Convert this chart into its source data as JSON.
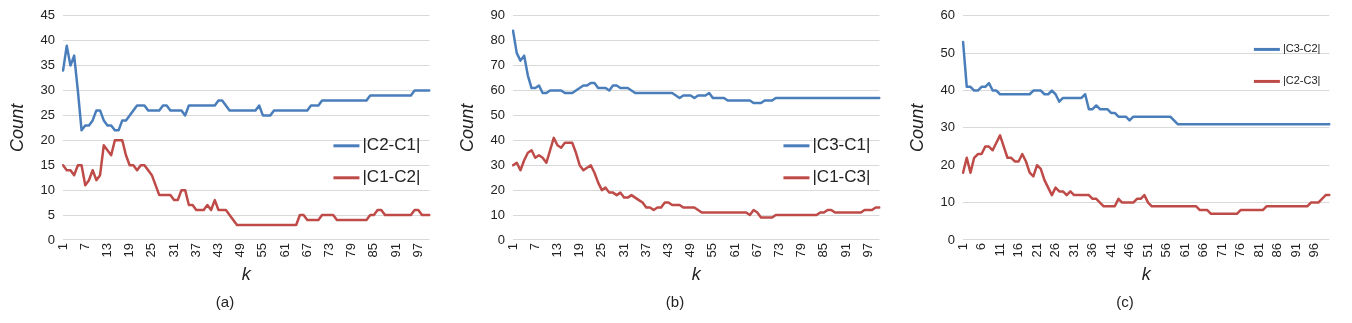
{
  "chart_data": [
    {
      "type": "line",
      "xlabel": "k",
      "ylabel": "Count",
      "ylim": [
        0,
        45
      ],
      "yticks": [
        0,
        5,
        10,
        15,
        20,
        25,
        30,
        35,
        40,
        45
      ],
      "grid": "y",
      "legend": "right",
      "marker": "none",
      "line_style": "solid",
      "annotations": [
        "(a)"
      ],
      "categories": [
        "1",
        null,
        null,
        null,
        null,
        null,
        "7",
        null,
        null,
        null,
        null,
        null,
        "13",
        null,
        null,
        null,
        null,
        null,
        "19",
        null,
        null,
        null,
        null,
        null,
        "25",
        null,
        null,
        null,
        null,
        null,
        "31",
        null,
        null,
        null,
        null,
        null,
        "37",
        null,
        null,
        null,
        null,
        null,
        "43",
        null,
        null,
        null,
        null,
        null,
        "49",
        null,
        null,
        null,
        null,
        null,
        "55",
        null,
        null,
        null,
        null,
        null,
        "61",
        null,
        null,
        null,
        null,
        null,
        "67",
        null,
        null,
        null,
        null,
        null,
        "73",
        null,
        null,
        null,
        null,
        null,
        "79",
        null,
        null,
        null,
        null,
        null,
        "85",
        null,
        null,
        null,
        null,
        null,
        "91",
        null,
        null,
        null,
        null,
        null,
        "97",
        null,
        null,
        null
      ],
      "series": [
        {
          "name": "|C2-C1|",
          "color": "#4a7ebb",
          "values": [
            34,
            39,
            35,
            37,
            30,
            22,
            23,
            23,
            24,
            26,
            26,
            24,
            23,
            23,
            22,
            22,
            24,
            24,
            25,
            26,
            27,
            27,
            27,
            26,
            26,
            26,
            26,
            27,
            27,
            26,
            26,
            26,
            26,
            25,
            27,
            27,
            27,
            27,
            27,
            27,
            27,
            27,
            28,
            28,
            27,
            26,
            26,
            26,
            26,
            26,
            26,
            26,
            26,
            27,
            25,
            25,
            25,
            26,
            26,
            26,
            26,
            26,
            26,
            26,
            26,
            26,
            26,
            27,
            27,
            27,
            28,
            28,
            28,
            28,
            28,
            28,
            28,
            28,
            28,
            28,
            28,
            28,
            28,
            29,
            29,
            29,
            29,
            29,
            29,
            29,
            29,
            29,
            29,
            29,
            29,
            30,
            30,
            30,
            30,
            30
          ]
        },
        {
          "name": "|C1-C2|",
          "color": "#be4b48",
          "values": [
            15,
            14,
            14,
            13,
            15,
            15,
            11,
            12,
            14,
            12,
            13,
            19,
            18,
            17,
            20,
            20,
            20,
            17,
            15,
            15,
            14,
            15,
            15,
            14,
            13,
            11,
            9,
            9,
            9,
            9,
            8,
            8,
            10,
            10,
            7,
            7,
            6,
            6,
            6,
            7,
            6,
            8,
            6,
            6,
            6,
            5,
            4,
            3,
            3,
            3,
            3,
            3,
            3,
            3,
            3,
            3,
            3,
            3,
            3,
            3,
            3,
            3,
            3,
            3,
            5,
            5,
            4,
            4,
            4,
            4,
            5,
            5,
            5,
            5,
            4,
            4,
            4,
            4,
            4,
            4,
            4,
            4,
            4,
            5,
            5,
            6,
            6,
            5,
            5,
            5,
            5,
            5,
            5,
            5,
            5,
            6,
            6,
            5,
            5,
            5
          ]
        }
      ]
    },
    {
      "type": "line",
      "xlabel": "k",
      "ylabel": "Count",
      "ylim": [
        0,
        90
      ],
      "yticks": [
        0,
        10,
        20,
        30,
        40,
        50,
        60,
        70,
        80,
        90
      ],
      "grid": "y",
      "legend": "right",
      "marker": "none",
      "line_style": "solid",
      "annotations": [
        "(b)"
      ],
      "categories": [
        "1",
        null,
        null,
        null,
        null,
        null,
        "7",
        null,
        null,
        null,
        null,
        null,
        "13",
        null,
        null,
        null,
        null,
        null,
        "19",
        null,
        null,
        null,
        null,
        null,
        "25",
        null,
        null,
        null,
        null,
        null,
        "31",
        null,
        null,
        null,
        null,
        null,
        "37",
        null,
        null,
        null,
        null,
        null,
        "43",
        null,
        null,
        null,
        null,
        null,
        "49",
        null,
        null,
        null,
        null,
        null,
        "55",
        null,
        null,
        null,
        null,
        null,
        "61",
        null,
        null,
        null,
        null,
        null,
        "67",
        null,
        null,
        null,
        null,
        null,
        "73",
        null,
        null,
        null,
        null,
        null,
        "79",
        null,
        null,
        null,
        null,
        null,
        "85",
        null,
        null,
        null,
        null,
        null,
        "91",
        null,
        null,
        null,
        null,
        null,
        "97",
        null,
        null,
        null
      ],
      "series": [
        {
          "name": "|C3-C1|",
          "color": "#4a7ebb",
          "values": [
            84,
            75,
            72,
            74,
            66,
            61,
            61,
            62,
            59,
            59,
            60,
            60,
            60,
            60,
            59,
            59,
            59,
            60,
            61,
            62,
            62,
            63,
            63,
            61,
            61,
            61,
            60,
            62,
            62,
            61,
            61,
            61,
            60,
            59,
            59,
            59,
            59,
            59,
            59,
            59,
            59,
            59,
            59,
            59,
            58,
            57,
            58,
            58,
            58,
            57,
            58,
            58,
            58,
            59,
            57,
            57,
            57,
            57,
            56,
            56,
            56,
            56,
            56,
            56,
            56,
            55,
            55,
            55,
            56,
            56,
            56,
            57,
            57,
            57,
            57,
            57,
            57,
            57,
            57,
            57,
            57,
            57,
            57,
            57,
            57,
            57,
            57,
            57,
            57,
            57,
            57,
            57,
            57,
            57,
            57,
            57,
            57,
            57,
            57,
            57
          ]
        },
        {
          "name": "|C1-C3|",
          "color": "#be4b48",
          "values": [
            30,
            31,
            28,
            32,
            35,
            36,
            33,
            34,
            33,
            31,
            36,
            41,
            38,
            37,
            39,
            39,
            39,
            35,
            30,
            28,
            29,
            30,
            27,
            23,
            20,
            21,
            19,
            19,
            18,
            19,
            17,
            17,
            18,
            17,
            16,
            15,
            13,
            13,
            12,
            13,
            13,
            15,
            15,
            14,
            14,
            14,
            13,
            13,
            13,
            13,
            12,
            11,
            11,
            11,
            11,
            11,
            11,
            11,
            11,
            11,
            11,
            11,
            11,
            11,
            10,
            12,
            11,
            9,
            9,
            9,
            9,
            10,
            10,
            10,
            10,
            10,
            10,
            10,
            10,
            10,
            10,
            10,
            10,
            11,
            11,
            12,
            12,
            11,
            11,
            11,
            11,
            11,
            11,
            11,
            11,
            12,
            12,
            12,
            13,
            13
          ]
        }
      ]
    },
    {
      "type": "line",
      "xlabel": "k",
      "ylabel": "Count",
      "ylim": [
        0,
        60
      ],
      "yticks": [
        0,
        10,
        20,
        30,
        40,
        50,
        60
      ],
      "grid": "y",
      "legend": "top right",
      "marker": "none",
      "line_style": "solid",
      "annotations": [
        "(c)"
      ],
      "categories": [
        "1",
        null,
        null,
        null,
        null,
        "6",
        null,
        null,
        null,
        null,
        "11",
        null,
        null,
        null,
        null,
        "16",
        null,
        null,
        null,
        null,
        "21",
        null,
        null,
        null,
        null,
        "26",
        null,
        null,
        null,
        null,
        "31",
        null,
        null,
        null,
        null,
        "36",
        null,
        null,
        null,
        null,
        "41",
        null,
        null,
        null,
        null,
        "46",
        null,
        null,
        null,
        null,
        "51",
        null,
        null,
        null,
        null,
        "56",
        null,
        null,
        null,
        null,
        "61",
        null,
        null,
        null,
        null,
        "66",
        null,
        null,
        null,
        null,
        "71",
        null,
        null,
        null,
        null,
        "76",
        null,
        null,
        null,
        null,
        "81",
        null,
        null,
        null,
        null,
        "86",
        null,
        null,
        null,
        null,
        "91",
        null,
        null,
        null,
        null,
        "96",
        null,
        null,
        null,
        null
      ],
      "series": [
        {
          "name": "|C3-C2|",
          "color": "#4a7ebb",
          "values": [
            53,
            41,
            41,
            40,
            40,
            41,
            41,
            42,
            40,
            40,
            39,
            39,
            39,
            39,
            39,
            39,
            39,
            39,
            39,
            40,
            40,
            40,
            39,
            39,
            40,
            39,
            37,
            38,
            38,
            38,
            38,
            38,
            38,
            39,
            35,
            35,
            36,
            35,
            35,
            35,
            34,
            34,
            33,
            33,
            33,
            32,
            33,
            33,
            33,
            33,
            33,
            33,
            33,
            33,
            33,
            33,
            33,
            32,
            31,
            31,
            31,
            31,
            31,
            31,
            31,
            31,
            31,
            31,
            31,
            31,
            31,
            31,
            31,
            31,
            31,
            31,
            31,
            31,
            31,
            31,
            31,
            31,
            31,
            31,
            31,
            31,
            31,
            31,
            31,
            31,
            31,
            31,
            31,
            31,
            31,
            31,
            31,
            31,
            31,
            31
          ]
        },
        {
          "name": "|C2-C3|",
          "color": "#be4b48",
          "values": [
            18,
            22,
            18,
            22,
            23,
            23,
            25,
            25,
            24,
            26,
            28,
            25,
            22,
            22,
            21,
            21,
            23,
            21,
            18,
            17,
            20,
            19,
            16,
            14,
            12,
            14,
            13,
            13,
            12,
            13,
            12,
            12,
            12,
            12,
            12,
            11,
            11,
            10,
            9,
            9,
            9,
            9,
            11,
            10,
            10,
            10,
            10,
            11,
            11,
            12,
            10,
            9,
            9,
            9,
            9,
            9,
            9,
            9,
            9,
            9,
            9,
            9,
            9,
            9,
            8,
            8,
            8,
            7,
            7,
            7,
            7,
            7,
            7,
            7,
            7,
            8,
            8,
            8,
            8,
            8,
            8,
            8,
            9,
            9,
            9,
            9,
            9,
            9,
            9,
            9,
            9,
            9,
            9,
            9,
            10,
            10,
            10,
            11,
            12,
            12
          ]
        }
      ]
    }
  ]
}
